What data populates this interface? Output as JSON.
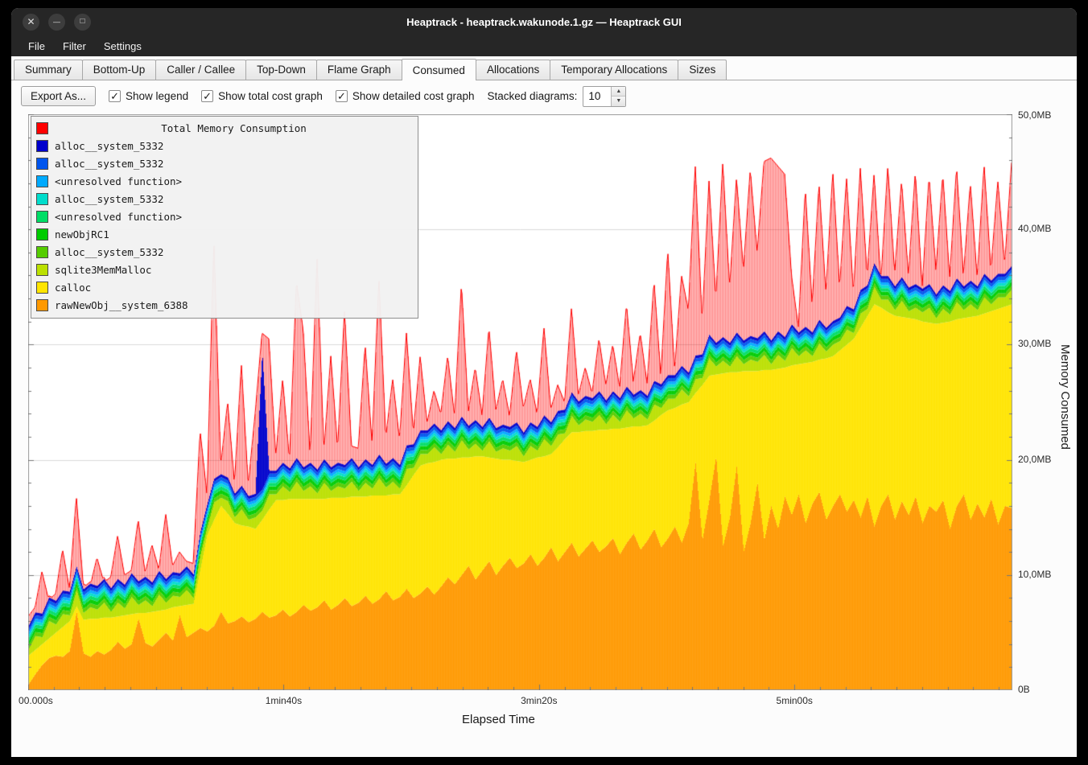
{
  "window": {
    "title": "Heaptrack - heaptrack.wakunode.1.gz — Heaptrack GUI",
    "controls": [
      {
        "name": "close",
        "glyph": "✕"
      },
      {
        "name": "minimize",
        "glyph": "—"
      },
      {
        "name": "maximize",
        "glyph": "□"
      }
    ]
  },
  "menu": {
    "items": [
      {
        "label": "File"
      },
      {
        "label": "Filter"
      },
      {
        "label": "Settings"
      }
    ]
  },
  "tabs": {
    "active": "Consumed",
    "items": [
      {
        "label": "Summary"
      },
      {
        "label": "Bottom-Up"
      },
      {
        "label": "Caller / Callee"
      },
      {
        "label": "Top-Down"
      },
      {
        "label": "Flame Graph"
      },
      {
        "label": "Consumed"
      },
      {
        "label": "Allocations"
      },
      {
        "label": "Temporary Allocations"
      },
      {
        "label": "Sizes"
      }
    ]
  },
  "toolbar": {
    "export_label": "Export As...",
    "checkboxes": [
      {
        "label": "Show legend",
        "checked": true,
        "glyph": "✓"
      },
      {
        "label": "Show total cost graph",
        "checked": true,
        "glyph": "✓"
      },
      {
        "label": "Show detailed cost graph",
        "checked": true,
        "glyph": "✓"
      }
    ],
    "stacked_label": "Stacked diagrams:",
    "stacked_value": "10",
    "spinner": {
      "up_glyph": "▲",
      "down_glyph": "▼"
    }
  },
  "legend": {
    "title": "Total Memory Consumption",
    "title_color": "#ff0000",
    "items": [
      {
        "label": "alloc__system_5332",
        "color": "#0000cc"
      },
      {
        "label": "alloc__system_5332",
        "color": "#0055ee"
      },
      {
        "label": "<unresolved function>",
        "color": "#00aaff"
      },
      {
        "label": "alloc__system_5332",
        "color": "#00ddcc"
      },
      {
        "label": "<unresolved function>",
        "color": "#00dd66"
      },
      {
        "label": "newObjRC1",
        "color": "#00cc00"
      },
      {
        "label": "alloc__system_5332",
        "color": "#55cc00"
      },
      {
        "label": "sqlite3MemMalloc",
        "color": "#bbe000"
      },
      {
        "label": "calloc",
        "color": "#ffe500"
      },
      {
        "label": "rawNewObj__system_6388",
        "color": "#ff9900"
      }
    ]
  },
  "chart_data": {
    "type": "area",
    "title": "Total Memory Consumption",
    "xlabel": "Elapsed Time",
    "ylabel": "Memory Consumed",
    "x_max_seconds": 385,
    "ylim_mb": [
      0,
      50
    ],
    "grid": "horizontal",
    "legend_position": "top-left",
    "y_ticks": [
      {
        "mb": 0,
        "label": "0B"
      },
      {
        "mb": 10,
        "label": "10,0MB"
      },
      {
        "mb": 20,
        "label": "20,0MB"
      },
      {
        "mb": 30,
        "label": "30,0MB"
      },
      {
        "mb": 40,
        "label": "40,0MB"
      },
      {
        "mb": 50,
        "label": "50,0MB"
      }
    ],
    "x_ticks": [
      {
        "s": 0,
        "label": "00.000s"
      },
      {
        "s": 100,
        "label": "1min40s"
      },
      {
        "s": 200,
        "label": "3min20s"
      },
      {
        "s": 300,
        "label": "5min00s"
      }
    ],
    "units": "MB",
    "series_stacked_bottom_to_top": [
      {
        "name": "rawNewObj__system_6388",
        "color": "#ff9900",
        "values": [
          0.5,
          1.4,
          2.2,
          2.8,
          3.0,
          2.9,
          3.4,
          6.8,
          3.2,
          2.9,
          3.4,
          3.1,
          3.5,
          4.2,
          3.6,
          4.0,
          6.2,
          4.1,
          3.8,
          4.4,
          5.0,
          4.3,
          6.5,
          4.6,
          5.0,
          5.4,
          5.1,
          5.6,
          6.8,
          5.8,
          6.0,
          6.4,
          5.9,
          6.2,
          6.8,
          6.3,
          6.5,
          7.0,
          6.4,
          6.8,
          7.4,
          6.9,
          7.2,
          7.8,
          7.0,
          7.4,
          8.0,
          7.3,
          7.6,
          8.2,
          7.5,
          7.9,
          8.6,
          7.8,
          8.1,
          8.8,
          8.0,
          8.4,
          9.0,
          8.3,
          9.0,
          9.8,
          9.2,
          10.0,
          10.8,
          9.6,
          10.4,
          11.2,
          10.0,
          10.8,
          11.5,
          10.6,
          11.0,
          11.8,
          10.8,
          11.5,
          12.4,
          11.2,
          12.0,
          12.8,
          11.6,
          12.3,
          13.0,
          12.0,
          12.5,
          13.2,
          11.8,
          12.8,
          13.6,
          12.2,
          13.0,
          14.0,
          12.4,
          13.2,
          14.2,
          12.8,
          14.5,
          19.8,
          13.0,
          16.5,
          20.3,
          12.5,
          15.0,
          19.5,
          12.0,
          14.5,
          18.0,
          13.0,
          16.0,
          14.0,
          16.8,
          15.2,
          17.0,
          14.5,
          16.2,
          17.2,
          14.8,
          16.0,
          17.0,
          15.5,
          16.5,
          15.0,
          16.8,
          14.2,
          16.0,
          17.0,
          14.8,
          16.4,
          15.2,
          16.8,
          14.5,
          16.0,
          15.5,
          16.5,
          14.0,
          16.0,
          17.0,
          14.8,
          16.2,
          15.0,
          16.6,
          14.4,
          16.0,
          15.8
        ]
      },
      {
        "name": "calloc",
        "color": "#ffe500",
        "values": [
          2.5,
          2.1,
          1.8,
          1.7,
          2.0,
          2.6,
          2.6,
          0.5,
          2.9,
          3.3,
          2.8,
          3.2,
          2.8,
          2.2,
          2.9,
          2.6,
          0.5,
          2.6,
          3.0,
          2.5,
          2.0,
          2.9,
          0.8,
          2.8,
          2.5,
          5.1,
          8.4,
          9.2,
          9.2,
          9.5,
          8.5,
          7.9,
          8.3,
          7.8,
          8.0,
          9.4,
          10.0,
          9.5,
          10.2,
          9.8,
          9.2,
          9.7,
          9.4,
          8.8,
          9.7,
          9.3,
          8.7,
          9.5,
          9.2,
          8.6,
          9.4,
          9.0,
          8.3,
          9.2,
          8.9,
          9.0,
          10.7,
          11.1,
          10.7,
          11.5,
          11.0,
          10.3,
          10.9,
          10.2,
          9.4,
          10.7,
          9.9,
          9.0,
          10.1,
          9.2,
          8.5,
          9.3,
          8.8,
          8.2,
          9.4,
          8.8,
          8.1,
          9.9,
          9.8,
          9.6,
          10.8,
          10.2,
          9.5,
          10.6,
          10.1,
          9.5,
          10.9,
          10.0,
          9.3,
          10.7,
          10.0,
          9.4,
          11.5,
          11.1,
          10.3,
          12.0,
          10.5,
          6.0,
          13.5,
          10.8,
          7.1,
          15.0,
          12.6,
          8.1,
          15.7,
          13.2,
          9.7,
          14.8,
          11.8,
          13.9,
          11.2,
          13.0,
          11.3,
          13.9,
          12.3,
          11.5,
          14.0,
          13.0,
          12.5,
          14.5,
          14.0,
          16.5,
          15.7,
          19.3,
          17.2,
          15.8,
          17.7,
          16.0,
          17.1,
          15.4,
          17.5,
          15.9,
          16.3,
          15.4,
          18.0,
          16.2,
          15.3,
          17.6,
          16.3,
          17.7,
          16.3,
          18.7,
          17.3,
          17.7
        ]
      },
      {
        "name": "sqlite3MemMalloc",
        "color": "#bbe000",
        "pattern": [
          0.5,
          1.2,
          0.6,
          1.5,
          0.7,
          1.1,
          0.5,
          1.4,
          0.6,
          1.0,
          0.8,
          1.3
        ]
      },
      {
        "name": "alloc__system_5332",
        "color": "#55cc00",
        "base": 0.35
      },
      {
        "name": "newObjRC1",
        "color": "#00cc00",
        "base": 0.35
      },
      {
        "name": "<unresolved function>",
        "color": "#00dd66",
        "base": 0.3
      },
      {
        "name": "alloc__system_5332",
        "color": "#00ddcc",
        "base": 0.25
      },
      {
        "name": "<unresolved function>",
        "color": "#00aaff",
        "base": 0.25
      },
      {
        "name": "alloc__system_5332",
        "color": "#0055ee",
        "base": 0.3
      },
      {
        "name": "alloc__system_5332",
        "color": "#0000cc",
        "base": 0.25,
        "spikes": {
          "34": 12.0
        }
      }
    ],
    "total": {
      "name": "Total Memory Consumption",
      "color": "#ff0000",
      "values": [
        6.4,
        7.2,
        10.3,
        7.8,
        8.4,
        12.2,
        8.8,
        16.8,
        9.2,
        9.0,
        11.5,
        9.4,
        9.8,
        13.4,
        10.0,
        10.4,
        14.8,
        10.2,
        12.6,
        10.5,
        15.3,
        10.8,
        12.0,
        11.2,
        11.0,
        22.5,
        17.0,
        39.2,
        19.5,
        25.0,
        18.0,
        28.3,
        17.8,
        24.0,
        31.0,
        30.5,
        20.3,
        27.0,
        20.0,
        35.5,
        31.2,
        20.4,
        37.6,
        20.8,
        29.0,
        21.0,
        33.0,
        21.2,
        21.0,
        30.0,
        21.4,
        35.8,
        22.0,
        27.0,
        21.8,
        31.0,
        22.4,
        29.0,
        23.2,
        26.0,
        24.0,
        29.0,
        23.8,
        35.3,
        24.2,
        28.0,
        23.9,
        31.5,
        24.3,
        27.0,
        23.8,
        29.5,
        24.5,
        27.0,
        24.0,
        31.5,
        24.4,
        26.5,
        25.0,
        33.2,
        25.6,
        28.0,
        25.8,
        30.5,
        26.5,
        30.0,
        26.3,
        33.5,
        26.8,
        31.0,
        26.6,
        35.5,
        27.3,
        38.2,
        27.8,
        36.0,
        33.0,
        45.6,
        32.0,
        44.2,
        34.0,
        45.8,
        35.0,
        44.5,
        36.5,
        45.2,
        38.0,
        45.9,
        46.2,
        45.5,
        44.8,
        36.0,
        31.5,
        43.5,
        33.5,
        44.0,
        34.5,
        45.0,
        35.0,
        44.5,
        34.5,
        45.3,
        36.0,
        44.8,
        35.5,
        45.5,
        36.2,
        44.2,
        36.0,
        45.0,
        35.0,
        44.6,
        36.5,
        44.8,
        35.8,
        45.4,
        36.0,
        44.0,
        35.8,
        45.6,
        36.5,
        44.2,
        37.0,
        45.8
      ]
    }
  }
}
